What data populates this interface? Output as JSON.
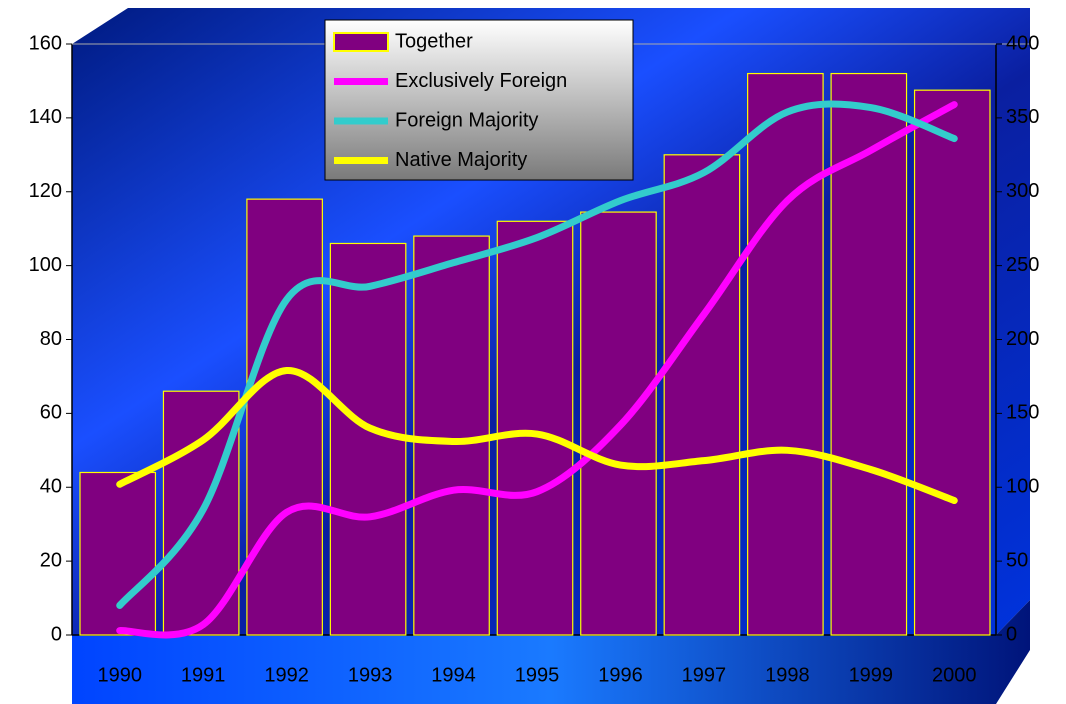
{
  "chart_data": {
    "type": "bar",
    "categories": [
      "1990",
      "1991",
      "1992",
      "1993",
      "1994",
      "1995",
      "1996",
      "1997",
      "1998",
      "1999",
      "2000"
    ],
    "series": [
      {
        "name": "Together",
        "type": "bar",
        "color": "#800080",
        "edge_color": "#ffff00",
        "values": [
          44,
          66,
          118,
          106,
          108,
          112,
          114.5,
          130,
          152,
          152,
          147.5
        ]
      },
      {
        "name": "Exclusively Foreign",
        "type": "line",
        "axis": "y2",
        "color": "#ff00ff",
        "values": [
          3,
          7,
          83,
          80,
          98,
          97,
          142,
          217,
          294,
          328,
          359
        ]
      },
      {
        "name": "Foreign Majority",
        "type": "line",
        "axis": "y2",
        "color": "#33cccc",
        "values": [
          20,
          85,
          227,
          236,
          252,
          269,
          294,
          313,
          354,
          357,
          336
        ]
      },
      {
        "name": "Native Majority",
        "type": "line",
        "axis": "y2",
        "color": "#ffff00",
        "values": [
          102,
          132,
          179,
          140,
          131,
          136,
          115,
          118,
          125,
          112,
          91
        ]
      }
    ],
    "ylim": [
      0,
      160
    ],
    "yticks": [
      0,
      20,
      40,
      60,
      80,
      100,
      120,
      140,
      160
    ],
    "y2lim": [
      0,
      400
    ],
    "y2ticks": [
      0,
      50,
      100,
      150,
      200,
      250,
      300,
      350,
      400
    ],
    "legend": "top"
  }
}
